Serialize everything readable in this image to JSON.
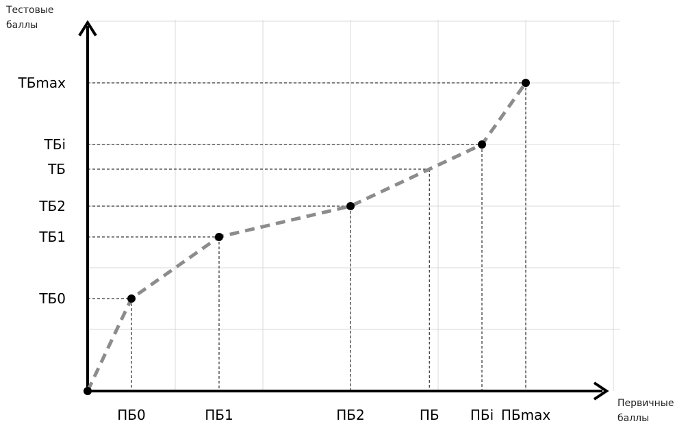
{
  "chart_data": {
    "type": "line",
    "xlabel": "Первичные\nбаллы",
    "ylabel": "Тестовые\nбаллы",
    "grid": true,
    "x_ticks": [
      {
        "label": "ПБ0",
        "x": 0.5
      },
      {
        "label": "ПБ1",
        "x": 1.5
      },
      {
        "label": "ПБ2",
        "x": 3.0
      },
      {
        "label": "ПБ",
        "x": 3.9
      },
      {
        "label": "ПБi",
        "x": 4.5
      },
      {
        "label": "ПБmax",
        "x": 5.0
      }
    ],
    "y_ticks": [
      {
        "label": "ТБ0",
        "y": 1.5
      },
      {
        "label": "ТБ1",
        "y": 2.5
      },
      {
        "label": "ТБ2",
        "y": 3.0
      },
      {
        "label": "ТБ",
        "y": 3.6
      },
      {
        "label": "ТБi",
        "y": 4.0
      },
      {
        "label": "ТБmax",
        "y": 5.0
      }
    ],
    "series": [
      {
        "x": [
          0,
          0.5,
          1.5,
          3.0,
          3.9,
          4.5,
          5.0
        ],
        "y": [
          0,
          1.5,
          2.5,
          3.0,
          3.6,
          4.0,
          5.0
        ],
        "markers": [
          false,
          true,
          true,
          true,
          false,
          true,
          true
        ]
      }
    ],
    "xlim": [
      0,
      6
    ],
    "ylim": [
      0,
      6
    ],
    "colors": {
      "line": "#8c8c8c",
      "grid": "#d9d9d9",
      "axis": "#000000",
      "marker": "#000000"
    }
  }
}
